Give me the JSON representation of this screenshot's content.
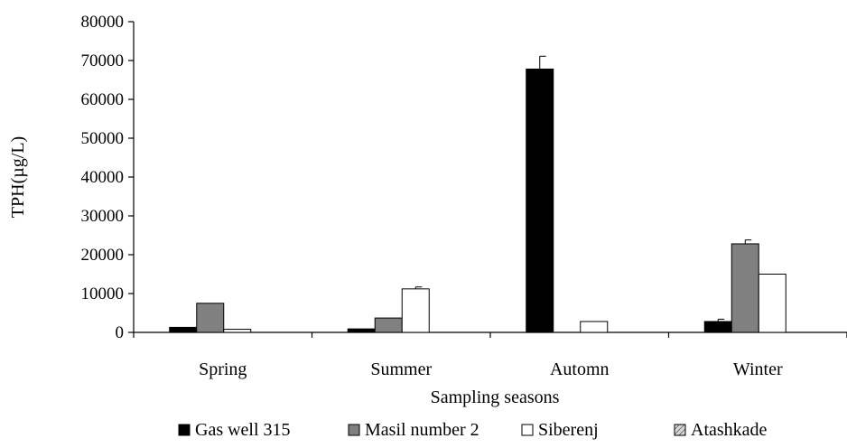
{
  "chart_data": {
    "type": "bar",
    "title": "",
    "xlabel": "Sampling seasons",
    "ylabel": "TPH(µg/L)",
    "ylim": [
      0,
      80000
    ],
    "yticks": [
      0,
      10000,
      20000,
      30000,
      40000,
      50000,
      60000,
      70000,
      80000
    ],
    "ytick_labels": [
      "0",
      "10000",
      "20000",
      "30000",
      "40000",
      "50000",
      "60000",
      "70000",
      "80000"
    ],
    "categories": [
      "Spring",
      "Summer",
      "Automn",
      "Winter"
    ],
    "grid": false,
    "legend_position": "bottom",
    "series": [
      {
        "name": "Gas well 315",
        "color": "#000000",
        "fill": "solid",
        "values": [
          1300,
          900,
          67800,
          2800
        ],
        "errors": [
          0,
          0,
          3300,
          600
        ]
      },
      {
        "name": "Masil number 2",
        "color": "#808080",
        "fill": "solid",
        "values": [
          7500,
          3700,
          0,
          22800
        ],
        "errors": [
          0,
          0,
          0,
          1000
        ]
      },
      {
        "name": "Siberenj",
        "color": "#ffffff",
        "fill": "solid",
        "values": [
          800,
          11200,
          2800,
          15000
        ],
        "errors": [
          0,
          500,
          0,
          0
        ]
      },
      {
        "name": "Atashkade",
        "color": "#c0c0c0",
        "fill": "hatched",
        "values": [
          0,
          0,
          0,
          0
        ],
        "errors": [
          0,
          0,
          0,
          0
        ]
      }
    ]
  }
}
